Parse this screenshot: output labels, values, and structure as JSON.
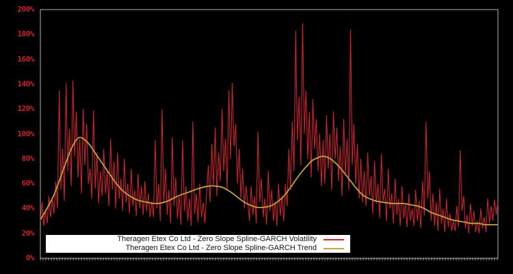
{
  "window": {
    "background": "#000000"
  },
  "chart_data": {
    "type": "line",
    "title": "",
    "xlabel": "",
    "ylabel": "",
    "ylim": [
      0,
      200
    ],
    "yticks": [
      "0%",
      "20%",
      "40%",
      "60%",
      "80%",
      "100%",
      "120%",
      "140%",
      "160%",
      "180%",
      "200%"
    ],
    "xticks": [],
    "grid": false,
    "plot_background": "#000000",
    "axis_color": "#b4b4b4",
    "tick_label_color": "#c9232a",
    "legend_position": "bottom-center",
    "legend_background": "#ffffff",
    "series": [
      {
        "name": "Theragen Etex Co Ltd - Zero Slope Spline-GARCH Volatility",
        "color": "#d0232e",
        "style": "spiky",
        "unit": "%",
        "x_range": [
          0,
          1
        ],
        "values": [
          30,
          45,
          26,
          38,
          28,
          50,
          33,
          47,
          36,
          62,
          40,
          135,
          55,
          88,
          46,
          141,
          70,
          104,
          58,
          143,
          82,
          118,
          65,
          96,
          52,
          120,
          75,
          108,
          60,
          72,
          48,
          119,
          56,
          85,
          44,
          70,
          50,
          88,
          52,
          70,
          42,
          96,
          55,
          78,
          40,
          85,
          48,
          64,
          38,
          80,
          45,
          60,
          36,
          72,
          42,
          55,
          34,
          68,
          40,
          58,
          35,
          62,
          38,
          52,
          33,
          46,
          33,
          95,
          40,
          60,
          30,
          120,
          44,
          72,
          35,
          55,
          28,
          97,
          42,
          65,
          32,
          50,
          27,
          95,
          38,
          58,
          30,
          48,
          26,
          110,
          36,
          52,
          29,
          60,
          33,
          45,
          28,
          52,
          75,
          45,
          92,
          58,
          105,
          50,
          85,
          62,
          120,
          70,
          96,
          55,
          135,
          80,
          141,
          90,
          108,
          60,
          88,
          48,
          72,
          40,
          58,
          44,
          30,
          58,
          35,
          50,
          28,
          102,
          45,
          64,
          33,
          48,
          27,
          70,
          38,
          55,
          30,
          46,
          26,
          60,
          34,
          50,
          30,
          60,
          42,
          88,
          55,
          110,
          70,
          183,
          95,
          130,
          75,
          189,
          100,
          135,
          80,
          118,
          65,
          128,
          88,
          112,
          70,
          100,
          58,
          95,
          60,
          115,
          72,
          100,
          55,
          118,
          80,
          105,
          62,
          90,
          50,
          112,
          68,
          96,
          55,
          184,
          75,
          108,
          60,
          92,
          48,
          80,
          45,
          70,
          42,
          85,
          50,
          66,
          36,
          78,
          44,
          60,
          32,
          84,
          46,
          56,
          30,
          72,
          40,
          52,
          28,
          64,
          35,
          48,
          26,
          58,
          32,
          44,
          25,
          52,
          30,
          40,
          26,
          55,
          30,
          46,
          24,
          62,
          34,
          110,
          48,
          70,
          30,
          52,
          26,
          45,
          22,
          56,
          28,
          40,
          21,
          48,
          25,
          36,
          22,
          30,
          22,
          42,
          25,
          87,
          38,
          50,
          24,
          35,
          20,
          44,
          26,
          38,
          21,
          30,
          20,
          40,
          24,
          33,
          21,
          48,
          28,
          42,
          30,
          47,
          35,
          45
        ]
      },
      {
        "name": "Theragen Etex Co Ltd - Zero Slope Spline-GARCH Trend",
        "color": "#c9a43c",
        "style": "smooth",
        "unit": "%",
        "points": [
          [
            0,
            31
          ],
          [
            0.016,
            41
          ],
          [
            0.031,
            52
          ],
          [
            0.046,
            67
          ],
          [
            0.061,
            82
          ],
          [
            0.073,
            92
          ],
          [
            0.084,
            97
          ],
          [
            0.094,
            96
          ],
          [
            0.106,
            92
          ],
          [
            0.121,
            84
          ],
          [
            0.136,
            76
          ],
          [
            0.151,
            68
          ],
          [
            0.166,
            60
          ],
          [
            0.181,
            54
          ],
          [
            0.196,
            50
          ],
          [
            0.211,
            47
          ],
          [
            0.233,
            45
          ],
          [
            0.256,
            44
          ],
          [
            0.278,
            46
          ],
          [
            0.3,
            50
          ],
          [
            0.323,
            53
          ],
          [
            0.345,
            56
          ],
          [
            0.368,
            58
          ],
          [
            0.383,
            58
          ],
          [
            0.398,
            57
          ],
          [
            0.413,
            54
          ],
          [
            0.428,
            50
          ],
          [
            0.442,
            46
          ],
          [
            0.457,
            43
          ],
          [
            0.472,
            41
          ],
          [
            0.487,
            41
          ],
          [
            0.502,
            42
          ],
          [
            0.517,
            45
          ],
          [
            0.532,
            50
          ],
          [
            0.547,
            57
          ],
          [
            0.562,
            65
          ],
          [
            0.577,
            72
          ],
          [
            0.592,
            78
          ],
          [
            0.607,
            81
          ],
          [
            0.617,
            82
          ],
          [
            0.629,
            81
          ],
          [
            0.644,
            77
          ],
          [
            0.659,
            71
          ],
          [
            0.674,
            64
          ],
          [
            0.689,
            57
          ],
          [
            0.704,
            51
          ],
          [
            0.719,
            48
          ],
          [
            0.734,
            46
          ],
          [
            0.749,
            45
          ],
          [
            0.771,
            44
          ],
          [
            0.794,
            44
          ],
          [
            0.809,
            43
          ],
          [
            0.824,
            42
          ],
          [
            0.839,
            40
          ],
          [
            0.853,
            37
          ],
          [
            0.868,
            35
          ],
          [
            0.883,
            33
          ],
          [
            0.898,
            31
          ],
          [
            0.913,
            30
          ],
          [
            0.928,
            29
          ],
          [
            0.943,
            28
          ],
          [
            0.958,
            28
          ],
          [
            0.973,
            27
          ],
          [
            0.988,
            27
          ],
          [
            1,
            27
          ]
        ]
      }
    ]
  },
  "legend": {
    "items": [
      {
        "label": "Theragen Etex Co Ltd - Zero Slope Spline-GARCH Volatility",
        "color": "#d0232e"
      },
      {
        "label": "Theragen Etex Co Ltd - Zero Slope Spline-GARCH Trend",
        "color": "#c9a43c"
      }
    ]
  }
}
